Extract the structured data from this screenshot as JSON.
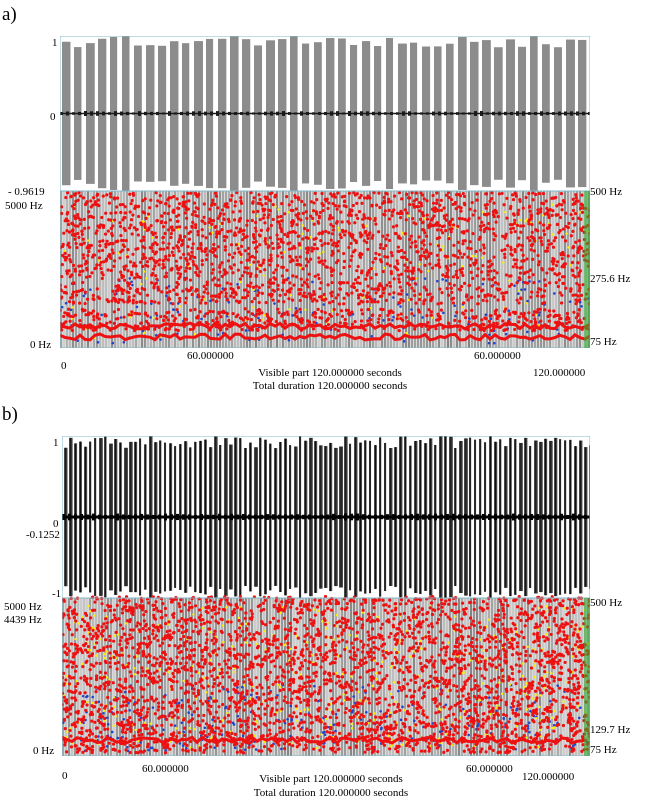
{
  "panels": [
    {
      "label": "a)",
      "wave_top": "1",
      "wave_mid": "0",
      "wave_bottom": "- 0.9619",
      "wave_extra": "",
      "spec_left_top": "5000 Hz",
      "spec_left_second": "",
      "spec_left_bottom": "0 Hz",
      "spec_right_top": "500 Hz",
      "spec_right_mid": "275.6 Hz",
      "spec_right_bottom": "75 Hz",
      "time_start": "0",
      "time_mark_left": "60.000000",
      "time_mark_right": "60.000000",
      "time_end": "120.000000",
      "visible_part": "Visible part 120.000000  seconds",
      "total_duration": "Total duration 120.000000 seconds",
      "colors": {
        "wave": "#808080",
        "wave_dark": "#1a1a1a",
        "pitch": "#ee1111",
        "intensity": "#ffee00",
        "formant": "#2244cc",
        "frame": "#7fb8c8"
      }
    },
    {
      "label": "b)",
      "wave_top": "1",
      "wave_mid": "0",
      "wave_bottom": "-1",
      "wave_extra": "-0.1252",
      "spec_left_top": "5000 Hz",
      "spec_left_second": "4439 Hz",
      "spec_left_bottom": "0 Hz",
      "spec_right_top": "500 Hz",
      "spec_right_mid": "129.7 Hz",
      "spec_right_bottom": "75 Hz",
      "time_start": "0",
      "time_mark_left": "60.000000",
      "time_mark_right": "60.000000",
      "time_end": "120.000000",
      "visible_part": "Visible part 120.000000  seconds",
      "total_duration": "Total duration 120.000000 seconds",
      "colors": {
        "wave": "#333333",
        "wave_dark": "#000000",
        "pitch": "#ee1111",
        "intensity": "#ffee00",
        "formant": "#2244cc",
        "frame": "#7fb8c8"
      }
    }
  ]
}
